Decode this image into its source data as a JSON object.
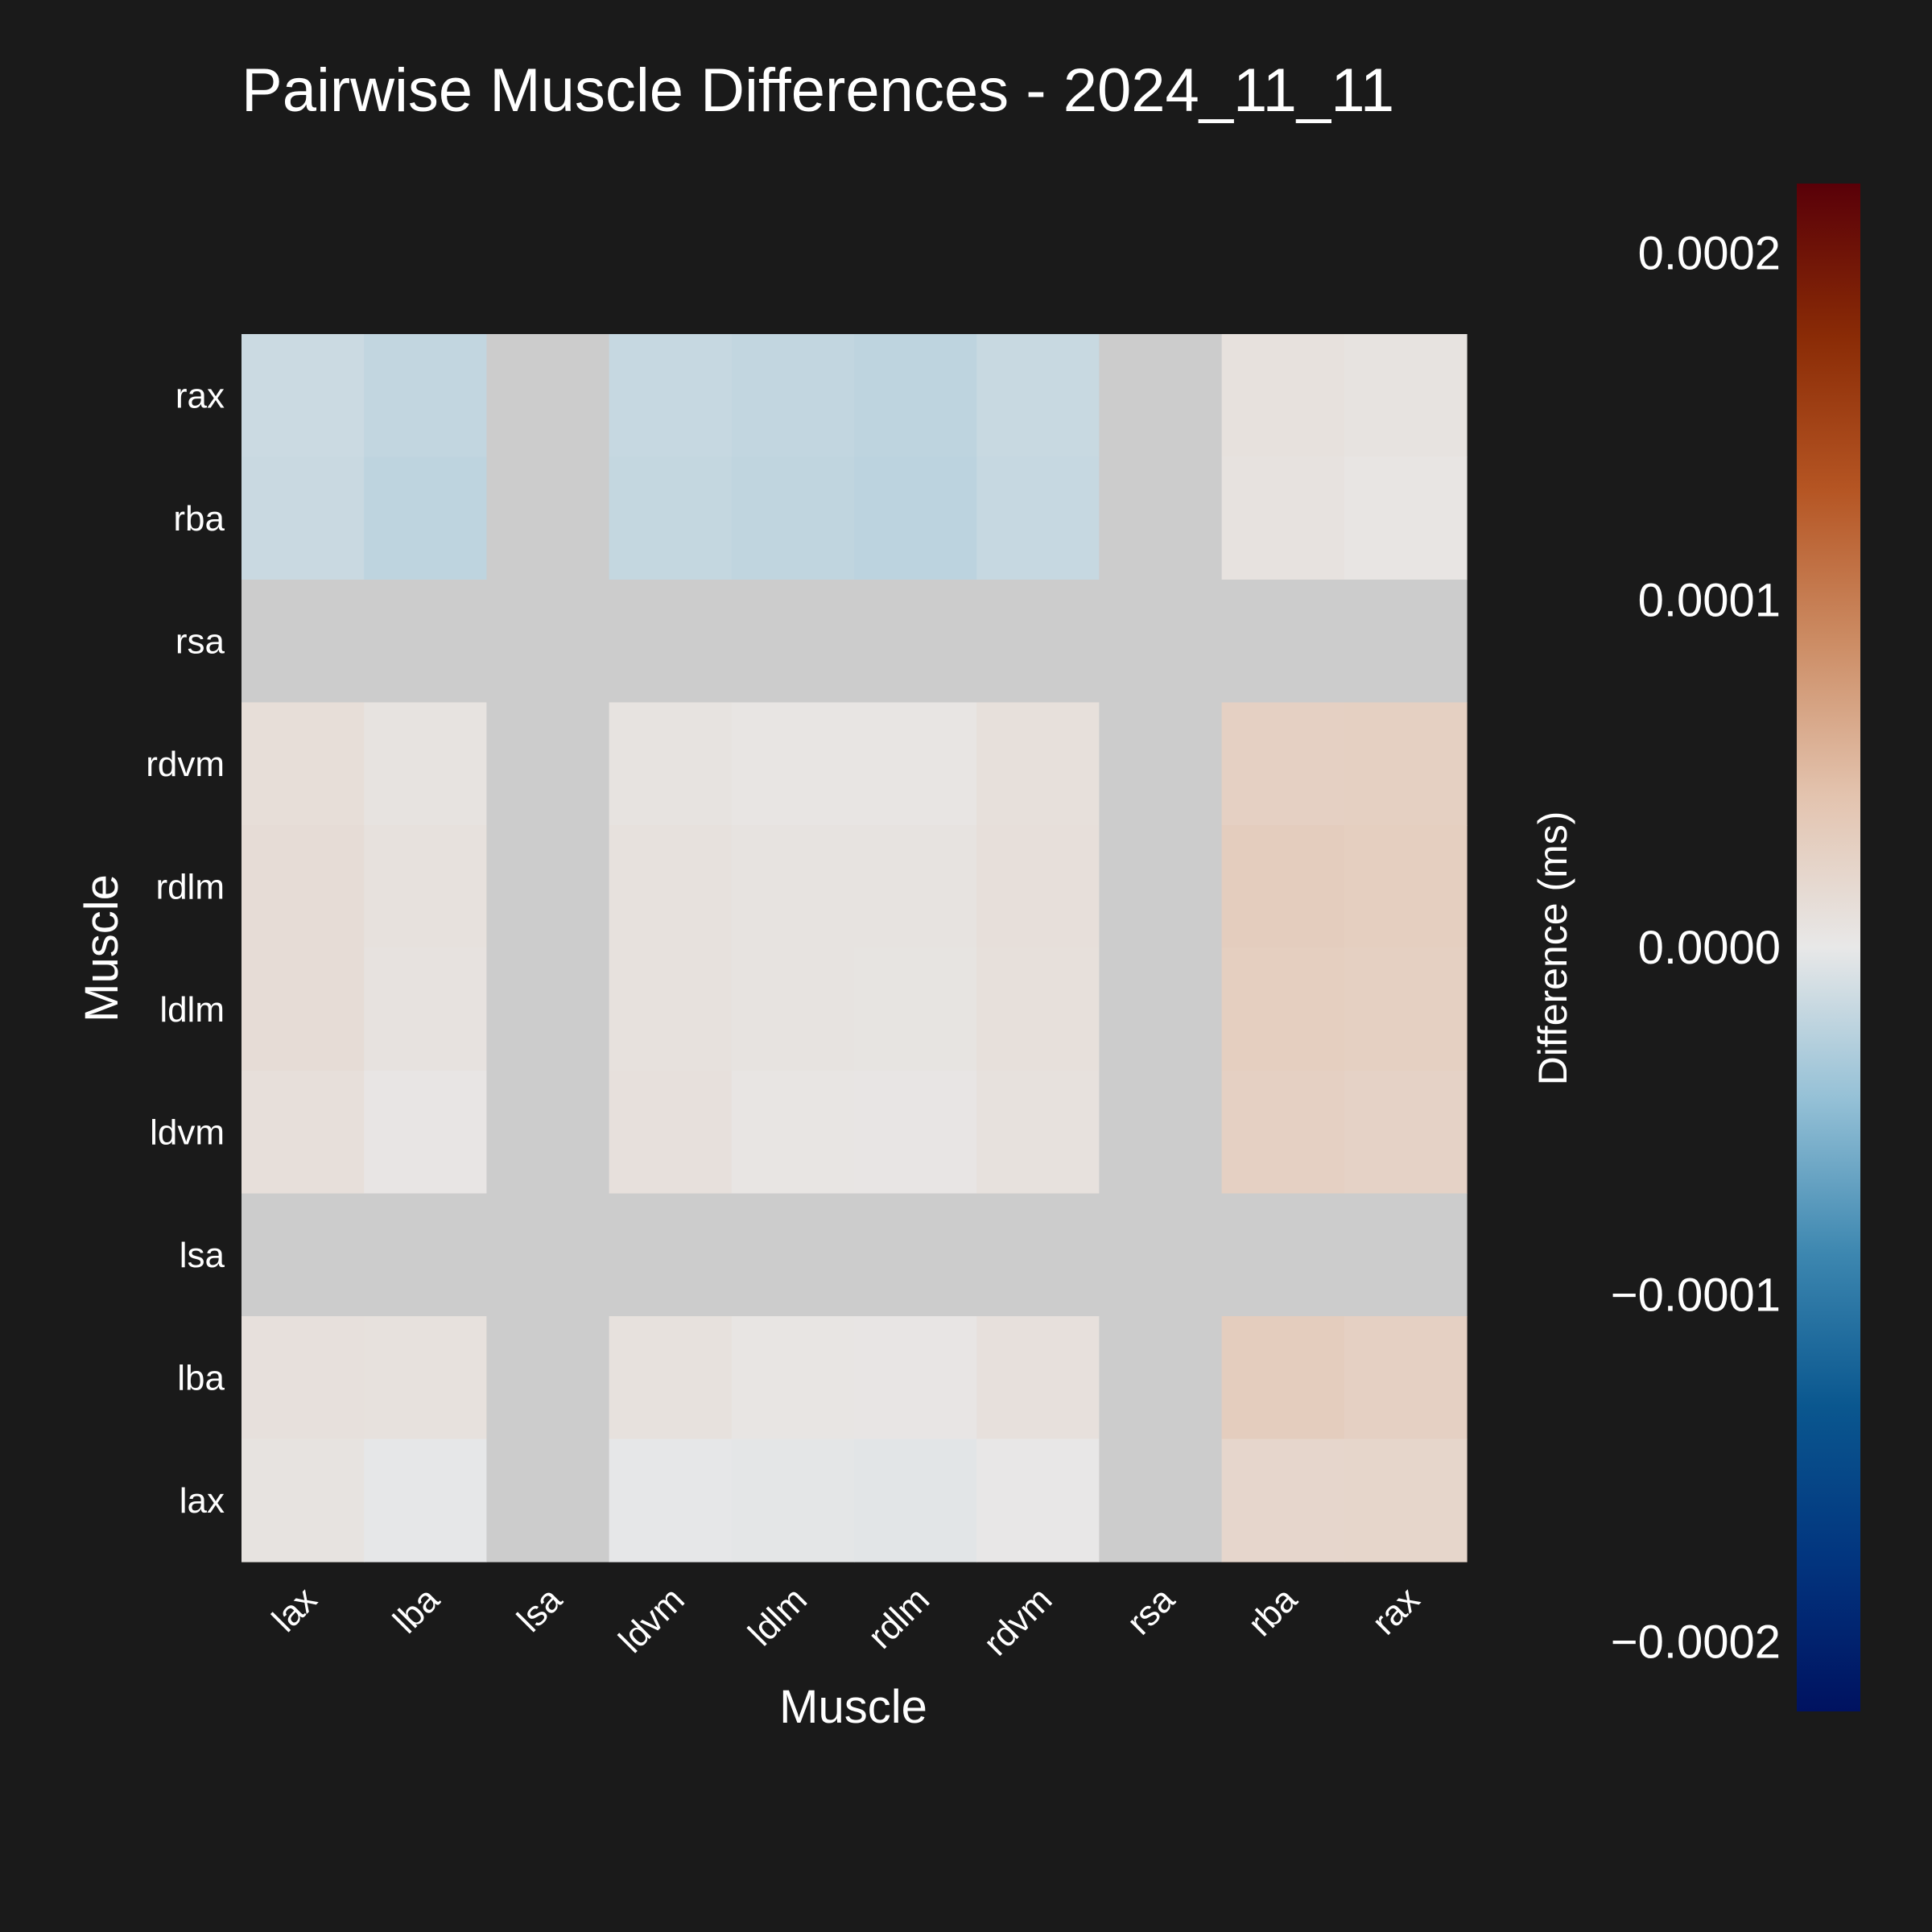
{
  "chart_data": {
    "type": "heatmap",
    "title": "Pairwise Muscle Differences - 2024_11_11",
    "xlabel": "Muscle",
    "ylabel": "Muscle",
    "x_categories": [
      "lax",
      "lba",
      "lsa",
      "ldvm",
      "ldlm",
      "rdlm",
      "rdvm",
      "rsa",
      "rba",
      "rax"
    ],
    "y_categories": [
      "rax",
      "rba",
      "rsa",
      "rdvm",
      "rdlm",
      "ldlm",
      "ldvm",
      "lsa",
      "lba",
      "lax"
    ],
    "values": [
      [
        -1.5e-05,
        -2e-05,
        null,
        -1.8e-05,
        -2e-05,
        -2.2e-05,
        -1.7e-05,
        null,
        8e-06,
        6e-06
      ],
      [
        -1.6e-05,
        -2.2e-05,
        null,
        -1.9e-05,
        -2.1e-05,
        -2.3e-05,
        -1.8e-05,
        null,
        7e-06,
        4e-06
      ],
      [
        null,
        null,
        null,
        null,
        null,
        null,
        null,
        null,
        null,
        null
      ],
      [
        1.2e-05,
        6e-06,
        null,
        6e-06,
        4e-06,
        4e-06,
        1e-05,
        null,
        2.8e-05,
        2.9e-05
      ],
      [
        1.4e-05,
        8e-06,
        null,
        8e-06,
        6e-06,
        6e-06,
        1.1e-05,
        null,
        3.2e-05,
        3e-05
      ],
      [
        1.4e-05,
        7e-06,
        null,
        8e-06,
        6e-06,
        5e-06,
        1e-05,
        null,
        3e-05,
        2.9e-05
      ],
      [
        1.1e-05,
        3e-06,
        null,
        9e-06,
        4e-06,
        3e-06,
        8e-06,
        null,
        2.8e-05,
        2.6e-05
      ],
      [
        null,
        null,
        null,
        null,
        null,
        null,
        null,
        null,
        null,
        null
      ],
      [
        9e-06,
        8e-06,
        null,
        8e-06,
        4e-06,
        3e-06,
        9e-06,
        null,
        3.2e-05,
        2.8e-05
      ],
      [
        6e-06,
        -1e-06,
        null,
        -1e-06,
        -2e-06,
        -3e-06,
        1e-06,
        null,
        2.1e-05,
        2.2e-05
      ]
    ],
    "nan_color": "#cccccc",
    "colorbar": {
      "label": "Difference (ms)",
      "min": -0.00022,
      "max": 0.00022,
      "ticks": [
        0.0002,
        0.0001,
        0.0,
        -0.0001,
        -0.0002
      ],
      "tick_labels": [
        "0.0002",
        "0.0001",
        "0.0000",
        "−0.0001",
        "−0.0002"
      ],
      "colormap": "vik",
      "stops": [
        "#001260",
        "#02357f",
        "#0a578f",
        "#3d87b0",
        "#94c0d6",
        "#e8e8e8",
        "#e3c3ae",
        "#cc8c64",
        "#b55523",
        "#8a2b06",
        "#590008"
      ]
    }
  }
}
